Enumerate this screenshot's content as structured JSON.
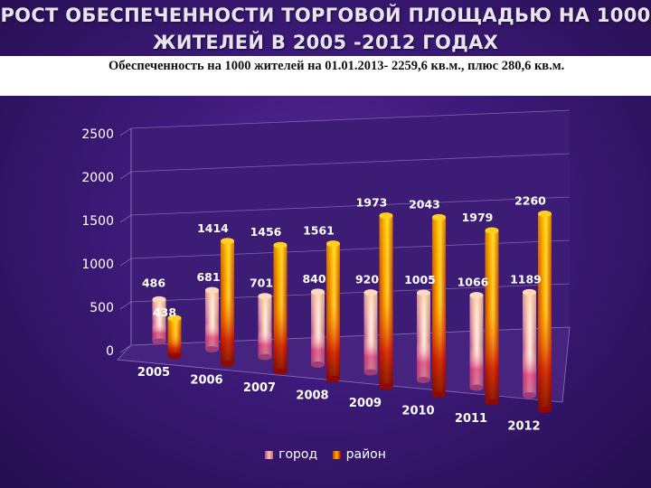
{
  "title": "РОСТ ОБЕСПЕЧЕННОСТИ ТОРГОВОЙ ПЛОЩАДЬЮ НА 1000 ЖИТЕЛЕЙ  В 2005 -2012 ГОДАХ",
  "subtitle": "Обеспеченность на 1000 жителей на 01.01.2013- 2259,6 кв.м., плюс 280,6 кв.м.",
  "chart_data": {
    "type": "bar",
    "categories": [
      "2005",
      "2006",
      "2007",
      "2008",
      "2009",
      "2010",
      "2011",
      "2012"
    ],
    "series": [
      {
        "name": "город",
        "values": [
          486,
          681,
          701,
          840,
          920,
          1005,
          1066,
          1189
        ],
        "color": "#f0c8a8"
      },
      {
        "name": "район",
        "values": [
          438,
          1414,
          1456,
          1561,
          1973,
          2043,
          1979,
          2260
        ],
        "color": "#ff8a00"
      }
    ],
    "ylim": [
      0,
      2500
    ],
    "yticks": [
      "0",
      "500",
      "1000",
      "1500",
      "2000",
      "2500"
    ],
    "legend_position": "bottom",
    "grid": true
  }
}
